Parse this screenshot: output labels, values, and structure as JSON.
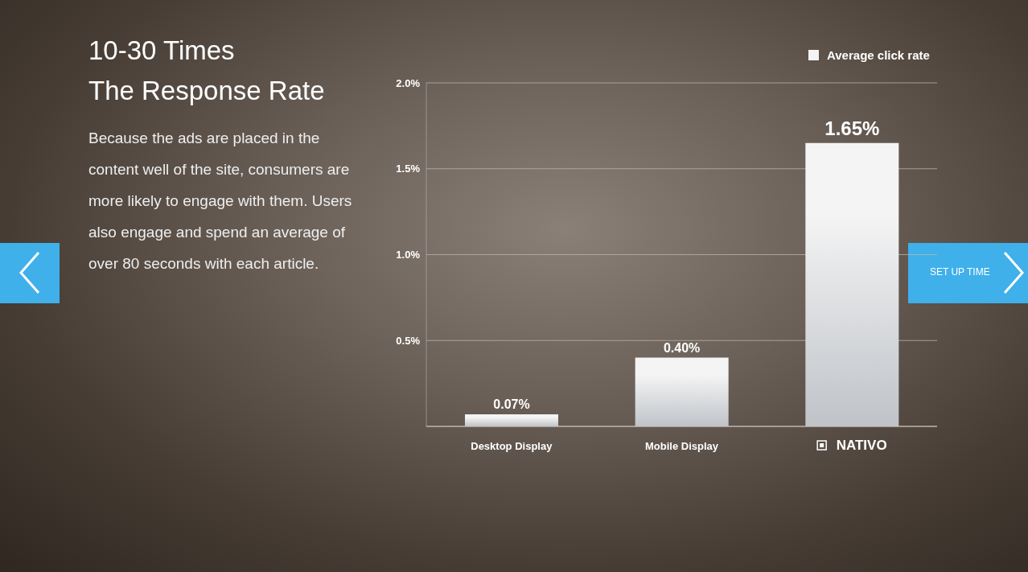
{
  "chart_data": {
    "type": "bar",
    "title": "10-30 Times",
    "subtitle": "The Response Rate",
    "annotations": [
      "Because the ads are placed in the content well of the site, consumers are more likely to engage with them. Users also engage and spend an average of over 80 seconds with each article.",
      "SET UP TIME"
    ],
    "categories": [
      "Desktop Display",
      "Mobile Display",
      "NATIVO"
    ],
    "series": [
      {
        "name": "Average click rate",
        "color": "#f4f4f4",
        "values": [
          0.07,
          0.4,
          1.65
        ],
        "value_labels": [
          "0.07%",
          "0.40%",
          "1.65%"
        ]
      }
    ],
    "ylim": [
      0,
      2.0
    ],
    "yticks": [
      {
        "value": 0.5,
        "label": "0.5%"
      },
      {
        "value": 1.0,
        "label": "1.0%"
      },
      {
        "value": 1.5,
        "label": "1.5%"
      },
      {
        "value": 2.0,
        "label": "2.0%"
      }
    ],
    "grid": true,
    "legend": "top-right",
    "data_labels": true
  }
}
